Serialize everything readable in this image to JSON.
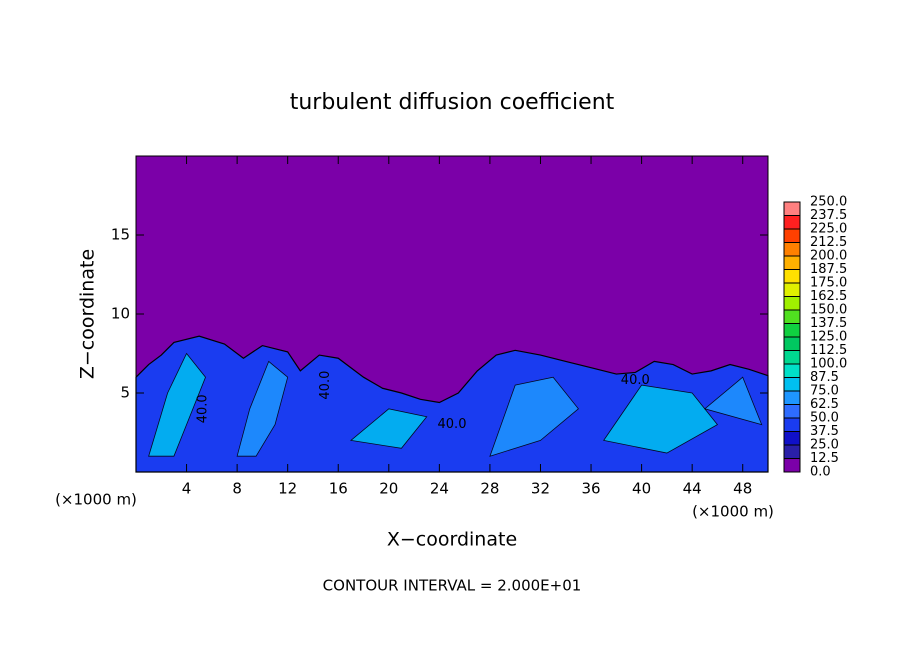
{
  "chart_data": {
    "type": "contour",
    "title": "turbulent diffusion coefficient",
    "x_label": "X−coordinate",
    "y_label": "Z−coordinate",
    "x_unit_left": "(×1000 m)",
    "x_unit_right": "(×1000 m)",
    "footnote": "CONTOUR INTERVAL = 2.000E+01",
    "xlim": [
      0,
      50
    ],
    "ylim": [
      0,
      20
    ],
    "xticks": [
      4,
      8,
      12,
      16,
      20,
      24,
      28,
      32,
      36,
      40,
      44,
      48
    ],
    "yticks": [
      5,
      10,
      15
    ],
    "contour_labels": [
      "40.0",
      "40.0",
      "40.0",
      "40.0"
    ],
    "colorbar": {
      "levels": [
        {
          "value": 0,
          "label": "0.0"
        },
        {
          "value": 12.5,
          "label": "12.5"
        },
        {
          "value": 25,
          "label": "25.0"
        },
        {
          "value": 37.5,
          "label": "37.5"
        },
        {
          "value": 50,
          "label": "50.0"
        },
        {
          "value": 62.5,
          "label": "62.5"
        },
        {
          "value": 75,
          "label": "75.0"
        },
        {
          "value": 87.5,
          "label": "87.5"
        },
        {
          "value": 100,
          "label": "100.0"
        },
        {
          "value": 112.5,
          "label": "112.5"
        },
        {
          "value": 125,
          "label": "125.0"
        },
        {
          "value": 137.5,
          "label": "137.5"
        },
        {
          "value": 150,
          "label": "150.0"
        },
        {
          "value": 162.5,
          "label": "162.5"
        },
        {
          "value": 175,
          "label": "175.0"
        },
        {
          "value": 187.5,
          "label": "187.5"
        },
        {
          "value": 200,
          "label": "200.0"
        },
        {
          "value": 212.5,
          "label": "212.5"
        },
        {
          "value": 225,
          "label": "225.0"
        },
        {
          "value": 237.5,
          "label": "237.5"
        },
        {
          "value": 250,
          "label": "250.0"
        }
      ],
      "colors": [
        "#7b00a8",
        "#2a1fa8",
        "#1010c8",
        "#1a3cf0",
        "#2e6cff",
        "#1e96ff",
        "#00c0f0",
        "#00e0c8",
        "#00d890",
        "#00c860",
        "#10d040",
        "#50e020",
        "#a0f000",
        "#e0f000",
        "#ffe000",
        "#ffb000",
        "#ff8000",
        "#ff4000",
        "#ff2020",
        "#ff8080"
      ]
    }
  }
}
